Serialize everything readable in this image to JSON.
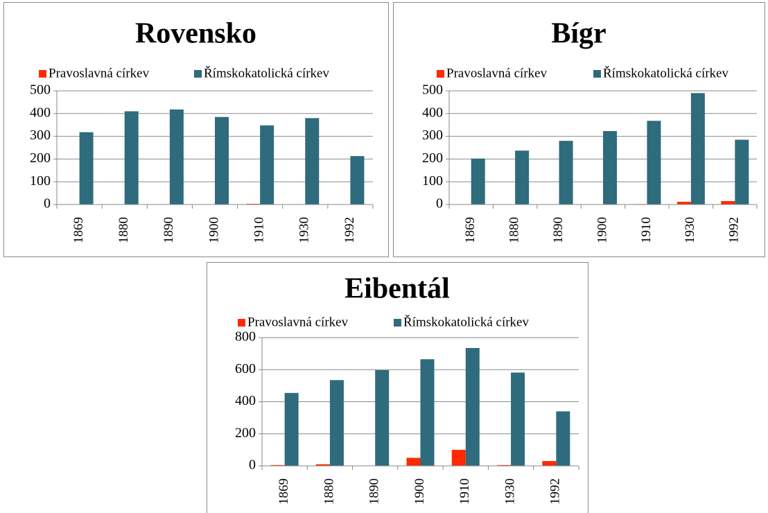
{
  "chart_data": [
    {
      "type": "bar",
      "title": "Rovensko",
      "categories": [
        "1869",
        "1880",
        "1890",
        "1900",
        "1910",
        "1930",
        "1992"
      ],
      "series": [
        {
          "name": "Pravoslavná církev",
          "color": "#ff2a00",
          "values": [
            0,
            0,
            0,
            0,
            3,
            1,
            1
          ]
        },
        {
          "name": "Římskokatolická církev",
          "color": "#2e6b7d",
          "values": [
            318,
            410,
            418,
            385,
            348,
            380,
            213
          ]
        }
      ],
      "ylim": [
        0,
        500
      ],
      "yticks": [
        0,
        100,
        200,
        300,
        400,
        500
      ],
      "grid": true
    },
    {
      "type": "bar",
      "title": "Bígr",
      "categories": [
        "1869",
        "1880",
        "1890",
        "1900",
        "1910",
        "1930",
        "1992"
      ],
      "series": [
        {
          "name": "Pravoslavná církev",
          "color": "#ff2a00",
          "values": [
            0,
            0,
            0,
            0,
            2,
            12,
            15
          ]
        },
        {
          "name": "Římskokatolická církev",
          "color": "#2e6b7d",
          "values": [
            202,
            237,
            280,
            323,
            368,
            490,
            285
          ]
        }
      ],
      "ylim": [
        0,
        500
      ],
      "yticks": [
        0,
        100,
        200,
        300,
        400,
        500
      ],
      "grid": true
    },
    {
      "type": "bar",
      "title": "Eibentál",
      "categories": [
        "1869",
        "1880",
        "1890",
        "1900",
        "1910",
        "1930",
        "1992"
      ],
      "series": [
        {
          "name": "Pravoslavná církev",
          "color": "#ff2a00",
          "values": [
            5,
            10,
            0,
            50,
            100,
            5,
            30
          ]
        },
        {
          "name": "Římskokatolická církev",
          "color": "#2e6b7d",
          "values": [
            455,
            535,
            597,
            665,
            735,
            582,
            340
          ]
        }
      ],
      "ylim": [
        0,
        800
      ],
      "yticks": [
        0,
        200,
        400,
        600,
        800
      ],
      "grid": true
    }
  ]
}
